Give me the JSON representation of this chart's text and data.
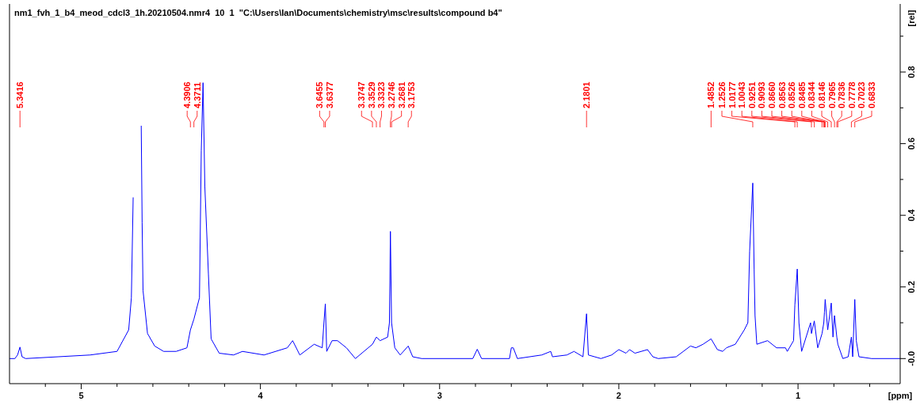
{
  "chart_data": {
    "type": "line",
    "title": "nm1_fvh_1_b4_meod_cdcl3_1h.20210504.nmr4  10  1  \"C:\\Users\\Ian\\Documents\\chemistry\\msc\\results\\compound b4\"",
    "xlabel": "[ppm]",
    "ylabel": "[rel]",
    "xlim": [
      5.4,
      0.43
    ],
    "ylim": [
      -0.07,
      0.99
    ],
    "xticks": [
      {
        "value": 5.2,
        "label": null
      },
      5,
      {
        "value": 4.8,
        "label": null
      },
      {
        "value": 4.6,
        "label": null
      },
      {
        "value": 4.4,
        "label": null
      },
      {
        "value": 4.2,
        "label": null
      },
      4,
      {
        "value": 3.8,
        "label": null
      },
      {
        "value": 3.6,
        "label": null
      },
      {
        "value": 3.4,
        "label": null
      },
      {
        "value": 3.2,
        "label": null
      },
      3,
      {
        "value": 2.8,
        "label": null
      },
      {
        "value": 2.6,
        "label": null
      },
      {
        "value": 2.4,
        "label": null
      },
      {
        "value": 2.2,
        "label": null
      },
      2,
      {
        "value": 1.8,
        "label": null
      },
      {
        "value": 1.6,
        "label": null
      },
      {
        "value": 1.4,
        "label": null
      },
      {
        "value": 1.2,
        "label": null
      },
      1,
      {
        "value": 0.8,
        "label": null
      },
      {
        "value": 0.6,
        "label": null
      }
    ],
    "yticks": [
      {
        "value": 0,
        "label": "-0.0"
      },
      {
        "value": 0.1,
        "label": null
      },
      0.2,
      {
        "value": 0.3,
        "label": null
      },
      0.4,
      {
        "value": 0.5,
        "label": null
      },
      0.6,
      {
        "value": 0.7,
        "label": null
      },
      0.8,
      {
        "value": 0.9,
        "label": null
      }
    ],
    "marker": "none",
    "line_style": "solid",
    "series": [
      {
        "color": "#0000ff",
        "x": [
          5.4,
          5.37,
          5.355,
          5.3416,
          5.33,
          5.31,
          5.13,
          4.95,
          4.8,
          4.735,
          4.72,
          4.71,
          4.705,
          4.67,
          4.665,
          4.66,
          4.655,
          4.63,
          4.59,
          4.54,
          4.47,
          4.41,
          4.3906,
          4.3711,
          4.34,
          4.33,
          4.32,
          4.31,
          4.29,
          4.275,
          4.23,
          4.15,
          4.1,
          3.98,
          3.85,
          3.82,
          3.78,
          3.7,
          3.655,
          3.6455,
          3.6377,
          3.63,
          3.6,
          3.57,
          3.52,
          3.47,
          3.3747,
          3.3529,
          3.3323,
          3.29,
          3.28,
          3.2746,
          3.2681,
          3.25,
          3.22,
          3.1753,
          3.15,
          3.1,
          2.815,
          2.79,
          2.766,
          2.61,
          2.6,
          2.589,
          2.566,
          2.43,
          2.38,
          2.37,
          2.29,
          2.25,
          2.2,
          2.1801,
          2.17,
          2.1,
          2.04,
          2.0,
          1.96,
          1.94,
          1.91,
          1.84,
          1.81,
          1.78,
          1.68,
          1.6,
          1.57,
          1.53,
          1.4852,
          1.45,
          1.42,
          1.4,
          1.35,
          1.3,
          1.28,
          1.27,
          1.2526,
          1.245,
          1.24,
          1.23,
          1.17,
          1.12,
          1.07,
          1.06,
          1.025,
          1.0177,
          1.0043,
          0.995,
          0.98,
          0.93,
          0.9251,
          0.9093,
          0.89,
          0.866,
          0.8563,
          0.8526,
          0.8485,
          0.8344,
          0.8146,
          0.805,
          0.7965,
          0.7836,
          0.7778,
          0.75,
          0.72,
          0.7023,
          0.695,
          0.6833,
          0.675,
          0.66,
          0.59,
          0.43
        ],
        "values": [
          0,
          0,
          0.01,
          0.032,
          0.005,
          0,
          0.005,
          0.01,
          0.02,
          0.08,
          0.17,
          0.45,
          null,
          null,
          0.65,
          0.38,
          0.19,
          0.07,
          0.035,
          0.02,
          0.02,
          0.03,
          0.08,
          0.11,
          0.17,
          0.58,
          0.77,
          0.48,
          0.235,
          0.055,
          0.015,
          0.01,
          0.02,
          0.01,
          0.03,
          0.05,
          0.01,
          0.04,
          0.03,
          0.1,
          0.153,
          0.02,
          0.05,
          0.05,
          0.03,
          0.0,
          0.04,
          0.06,
          0.05,
          0.06,
          0.1,
          0.355,
          0.1,
          0.03,
          0.01,
          0.035,
          0.005,
          0,
          0,
          0.026,
          0,
          0,
          0.03,
          0.03,
          0,
          0.01,
          0.02,
          0.005,
          0.01,
          0.02,
          0.005,
          0.125,
          0.01,
          0,
          0.01,
          0.025,
          0.015,
          0.025,
          0.015,
          0.025,
          0.005,
          0,
          0.005,
          0.035,
          0.03,
          0.04,
          0.055,
          0.025,
          0.02,
          0.03,
          0.04,
          0.08,
          0.1,
          0.3,
          0.49,
          0.25,
          0.12,
          0.04,
          0.05,
          0.03,
          0.03,
          0.02,
          0.05,
          0.15,
          0.25,
          0.1,
          0.02,
          0.1,
          0.07,
          0.105,
          0.03,
          0.07,
          0.1,
          0.13,
          0.165,
          0.08,
          0.155,
          0.06,
          0.12,
          0.06,
          0.04,
          0,
          0.005,
          0.06,
          0.005,
          0.165,
          0.05,
          0.005,
          0,
          0
        ]
      }
    ],
    "annotations": [
      {
        "text": "5.3416",
        "x": 5.3416
      },
      {
        "text": "4.3906",
        "x": 4.3906
      },
      {
        "text": "4.3711",
        "x": 4.3711
      },
      {
        "text": "3.6455",
        "x": 3.6455
      },
      {
        "text": "3.6377",
        "x": 3.6377
      },
      {
        "text": "3.3747",
        "x": 3.3747
      },
      {
        "text": "3.3529",
        "x": 3.3529
      },
      {
        "text": "3.3323",
        "x": 3.3323
      },
      {
        "text": "3.2746",
        "x": 3.2746
      },
      {
        "text": "3.2681",
        "x": 3.2681
      },
      {
        "text": "3.1753",
        "x": 3.1753
      },
      {
        "text": "2.1801",
        "x": 2.1801
      },
      {
        "text": "1.4852",
        "x": 1.4852
      },
      {
        "text": "1.2526",
        "x": 1.2526
      },
      {
        "text": "1.0177",
        "x": 1.0177
      },
      {
        "text": "1.0043",
        "x": 1.0043
      },
      {
        "text": "0.9251",
        "x": 0.9251
      },
      {
        "text": "0.9093",
        "x": 0.9093
      },
      {
        "text": "0.8660",
        "x": 0.866
      },
      {
        "text": "0.8563",
        "x": 0.8563
      },
      {
        "text": "0.8526",
        "x": 0.8526
      },
      {
        "text": "0.8485",
        "x": 0.8485
      },
      {
        "text": "0.8344",
        "x": 0.8344
      },
      {
        "text": "0.8146",
        "x": 0.8146
      },
      {
        "text": "0.7965",
        "x": 0.7965
      },
      {
        "text": "0.7836",
        "x": 0.7836
      },
      {
        "text": "0.7778",
        "x": 0.7778
      },
      {
        "text": "0.7023",
        "x": 0.7023
      },
      {
        "text": "0.6833",
        "x": 0.6833
      }
    ]
  }
}
